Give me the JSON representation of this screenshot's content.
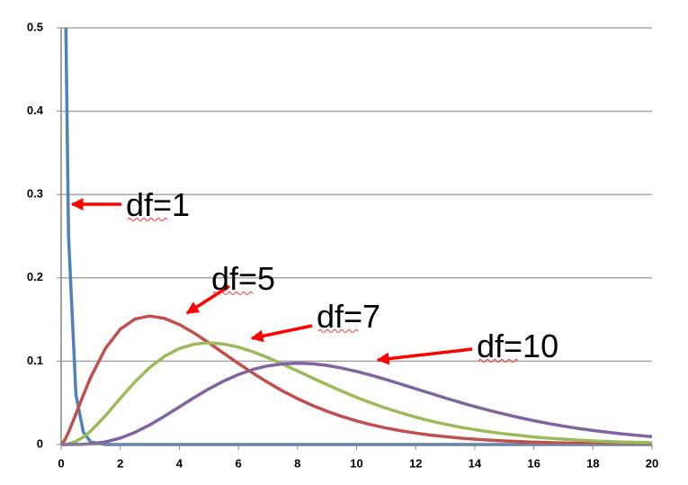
{
  "chart_data": {
    "type": "line",
    "x": [
      0,
      0.125,
      0.25,
      0.5,
      0.75,
      1,
      1.5,
      2,
      2.5,
      3,
      3.5,
      4,
      4.5,
      5,
      5.5,
      6,
      6.5,
      7,
      7.5,
      8,
      8.5,
      9,
      9.5,
      10,
      10.5,
      11,
      11.5,
      12,
      12.5,
      13,
      13.5,
      14,
      14.5,
      15,
      15.5,
      16,
      16.5,
      17,
      17.5,
      18,
      18.5,
      19,
      19.5,
      20
    ],
    "series": [
      {
        "name": "df=1",
        "color": "#4f81bd",
        "values": [
          null,
          0.6,
          0.25,
          0.06,
          0.015,
          0.003,
          0,
          0,
          0,
          0,
          0,
          0,
          0,
          0,
          0,
          0,
          0,
          0,
          0,
          0,
          0,
          0,
          0,
          0,
          0,
          0,
          0,
          0,
          0,
          0,
          0,
          0,
          0,
          0,
          0,
          0,
          0,
          0,
          0,
          0,
          0,
          0,
          0,
          0
        ]
      },
      {
        "name": "df=5",
        "color": "#c0504d",
        "values": [
          0,
          0.0055,
          0.0147,
          0.0366,
          0.0594,
          0.0807,
          0.1154,
          0.1384,
          0.1506,
          0.1542,
          0.1513,
          0.144,
          0.1338,
          0.1221,
          0.1096,
          0.0973,
          0.0855,
          0.0744,
          0.0642,
          0.0551,
          0.047,
          0.0399,
          0.0337,
          0.0283,
          0.0237,
          0.0198,
          0.0165,
          0.0137,
          0.0113,
          0.0094,
          0.0077,
          0.0064,
          0.0052,
          0.0043,
          0.0035,
          0.0028,
          0.0023,
          0.0019,
          0.0015,
          0.0012,
          0.001,
          0.0008,
          0.0007,
          0.0005
        ]
      },
      {
        "name": "df=7",
        "color": "#9bbb59",
        "values": [
          0,
          0.0001,
          0.0007,
          0.0037,
          0.0089,
          0.0161,
          0.0346,
          0.0554,
          0.0753,
          0.0925,
          0.1059,
          0.1152,
          0.1204,
          0.1221,
          0.1206,
          0.1168,
          0.1112,
          0.1042,
          0.0963,
          0.0882,
          0.0799,
          0.0718,
          0.064,
          0.0566,
          0.0498,
          0.0436,
          0.038,
          0.0329,
          0.0283,
          0.0244,
          0.0208,
          0.0179,
          0.0151,
          0.0129,
          0.0109,
          0.009,
          0.0076,
          0.0065,
          0.0053,
          0.0043,
          0.0037,
          0.003,
          0.0027,
          0.002
        ]
      },
      {
        "name": "df=10",
        "color": "#8064a2",
        "values": [
          0,
          0,
          0,
          0.0001,
          0.0003,
          0.0008,
          0.0031,
          0.0077,
          0.0146,
          0.0235,
          0.034,
          0.0451,
          0.0563,
          0.0668,
          0.0761,
          0.084,
          0.0902,
          0.0944,
          0.0968,
          0.0976,
          0.0969,
          0.0949,
          0.0917,
          0.0877,
          0.0831,
          0.0779,
          0.0725,
          0.0669,
          0.0614,
          0.0559,
          0.0506,
          0.0456,
          0.0409,
          0.0365,
          0.0324,
          0.0286,
          0.0252,
          0.0221,
          0.0193,
          0.0169,
          0.0147,
          0.0127,
          0.011,
          0.0095
        ]
      }
    ],
    "xlim": [
      0,
      20
    ],
    "xticks": [
      0,
      2,
      4,
      6,
      8,
      10,
      12,
      14,
      16,
      18,
      20
    ],
    "ylim": [
      0,
      0.5
    ],
    "yticks": [
      0,
      0.1,
      0.2,
      0.3,
      0.4,
      0.5
    ],
    "grid": true
  }
}
